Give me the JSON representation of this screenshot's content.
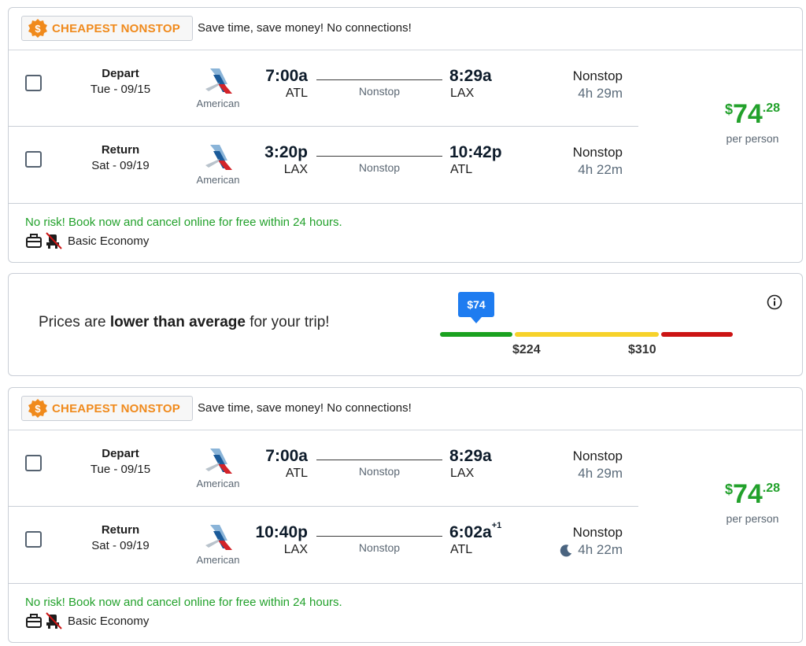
{
  "colors": {
    "brand_orange": "#f08a1c",
    "price_green": "#22a12b",
    "pin_blue": "#1e7cf0",
    "bar_green": "#1aa11f",
    "bar_yellow": "#f7d22a",
    "bar_red": "#cc1414"
  },
  "results": [
    {
      "badge": "CHEAPEST NONSTOP",
      "badge_icon": "dollar-seal-icon",
      "tagline": "Save time, save money! No connections!",
      "legs": [
        {
          "type": "Depart",
          "date": "Tue - 09/15",
          "airline": "American",
          "dep_time": "7:00a",
          "dep_code": "ATL",
          "route": "Nonstop",
          "arr_time": "8:29a",
          "arr_sup": "",
          "arr_code": "LAX",
          "stops": "Nonstop",
          "duration": "4h 29m",
          "overnight": false
        },
        {
          "type": "Return",
          "date": "Sat - 09/19",
          "airline": "American",
          "dep_time": "3:20p",
          "dep_code": "LAX",
          "route": "Nonstop",
          "arr_time": "10:42p",
          "arr_sup": "",
          "arr_code": "ATL",
          "stops": "Nonstop",
          "duration": "4h 22m",
          "overnight": false
        }
      ],
      "price": {
        "currency": "$",
        "whole": "74",
        "cents": ".28",
        "per_person": "per person"
      },
      "no_risk": "No risk! Book now and cancel online for free within 24 hours.",
      "fare_class": "Basic Economy"
    },
    {
      "badge": "CHEAPEST NONSTOP",
      "badge_icon": "dollar-seal-icon",
      "tagline": "Save time, save money! No connections!",
      "legs": [
        {
          "type": "Depart",
          "date": "Tue - 09/15",
          "airline": "American",
          "dep_time": "7:00a",
          "dep_code": "ATL",
          "route": "Nonstop",
          "arr_time": "8:29a",
          "arr_sup": "",
          "arr_code": "LAX",
          "stops": "Nonstop",
          "duration": "4h 29m",
          "overnight": false
        },
        {
          "type": "Return",
          "date": "Sat - 09/19",
          "airline": "American",
          "dep_time": "10:40p",
          "dep_code": "LAX",
          "route": "Nonstop",
          "arr_time": "6:02a",
          "arr_sup": "+1",
          "arr_code": "ATL",
          "stops": "Nonstop",
          "duration": "4h 22m",
          "overnight": true
        }
      ],
      "price": {
        "currency": "$",
        "whole": "74",
        "cents": ".28",
        "per_person": "per person"
      },
      "no_risk": "No risk! Book now and cancel online for free within 24 hours.",
      "fare_class": "Basic Economy"
    }
  ],
  "price_insight": {
    "prefix": "Prices are ",
    "emphasis": "lower than average",
    "suffix": " for your trip!",
    "current_price": "$74",
    "low_threshold": "$224",
    "high_threshold": "$310",
    "info_icon": "info-icon"
  }
}
